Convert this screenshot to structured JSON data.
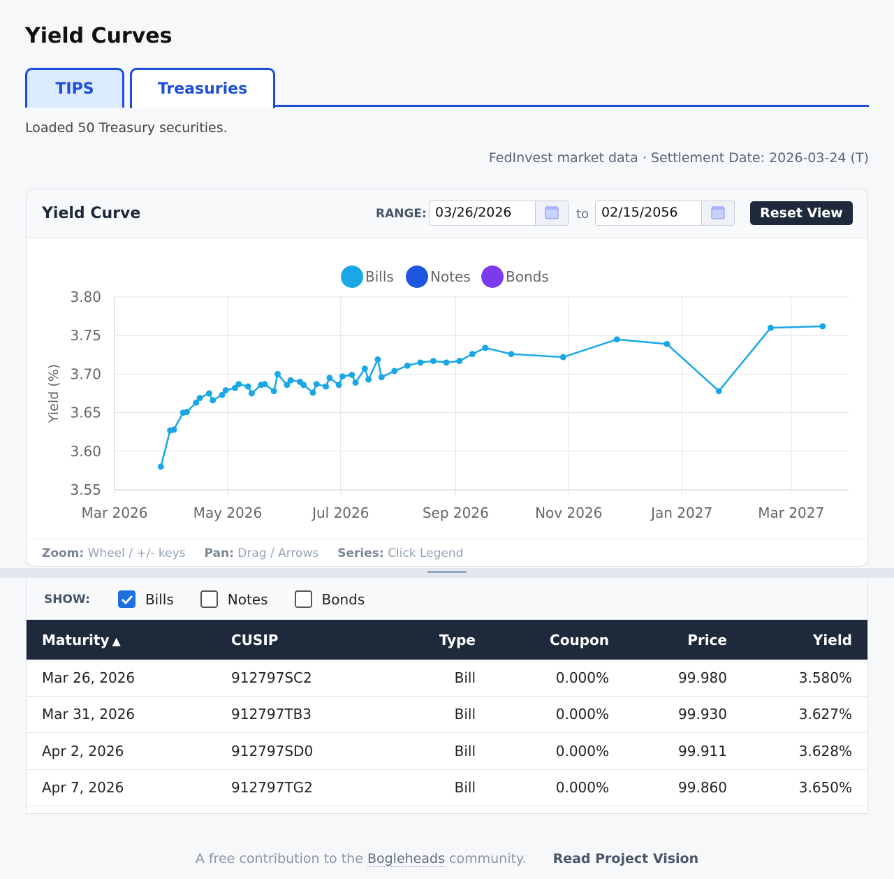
{
  "header": {
    "title": "Yield Curves"
  },
  "tabs": [
    "TIPS",
    "Treasuries"
  ],
  "status": "Loaded 50 Treasury securities.",
  "meta": "FedInvest market data · Settlement Date: 2026-03-24 (T)",
  "panel": {
    "title": "Yield Curve",
    "range_label": "RANGE:",
    "from": "03/26/2026",
    "to_label": "to",
    "to": "02/15/2056",
    "reset": "Reset View"
  },
  "chart_data": {
    "type": "line",
    "y_label": "Yield (%)",
    "grid": true,
    "xlim": [
      "2026-03-01",
      "2027-04-01"
    ],
    "xticks": [
      {
        "value": "2026-03-01",
        "label": "Mar 2026"
      },
      {
        "value": "2026-05-01",
        "label": "May 2026"
      },
      {
        "value": "2026-07-01",
        "label": "Jul 2026"
      },
      {
        "value": "2026-09-01",
        "label": "Sep 2026"
      },
      {
        "value": "2026-11-01",
        "label": "Nov 2026"
      },
      {
        "value": "2027-01-01",
        "label": "Jan 2027"
      },
      {
        "value": "2027-03-01",
        "label": "Mar 2027"
      }
    ],
    "ylim": [
      3.55,
      3.8
    ],
    "yticks": [
      3.55,
      {
        "value": 3.6,
        "label": "3.60"
      },
      3.65,
      {
        "value": 3.7,
        "label": "3.70"
      },
      3.75,
      {
        "value": 3.8,
        "label": "3.80"
      }
    ],
    "series": [
      {
        "name": "Bills",
        "color": "#19a7e6",
        "x": [
          "2026-03-26",
          "2026-03-31",
          "2026-04-02",
          "2026-04-07",
          "2026-04-09",
          "2026-04-14",
          "2026-04-16",
          "2026-04-21",
          "2026-04-23",
          "2026-04-28",
          "2026-04-30",
          "2026-05-05",
          "2026-05-07",
          "2026-05-12",
          "2026-05-14",
          "2026-05-19",
          "2026-05-21",
          "2026-05-26",
          "2026-05-28",
          "2026-06-02",
          "2026-06-04",
          "2026-06-09",
          "2026-06-11",
          "2026-06-16",
          "2026-06-18",
          "2026-06-23",
          "2026-06-25",
          "2026-06-30",
          "2026-07-02",
          "2026-07-07",
          "2026-07-09",
          "2026-07-14",
          "2026-07-16",
          "2026-07-21",
          "2026-07-23",
          "2026-07-30",
          "2026-08-06",
          "2026-08-13",
          "2026-08-20",
          "2026-08-27",
          "2026-09-03",
          "2026-09-10",
          "2026-09-17",
          "2026-10-01",
          "2026-10-29",
          "2026-11-27",
          "2026-12-24",
          "2027-01-21",
          "2027-02-18",
          "2027-03-18"
        ],
        "values": [
          3.58,
          3.627,
          3.628,
          3.65,
          3.651,
          3.663,
          3.669,
          3.675,
          3.666,
          3.673,
          3.679,
          3.682,
          3.687,
          3.684,
          3.675,
          3.686,
          3.687,
          3.678,
          3.7,
          3.686,
          3.692,
          3.69,
          3.686,
          3.676,
          3.687,
          3.684,
          3.695,
          3.686,
          3.697,
          3.699,
          3.689,
          3.707,
          3.693,
          3.719,
          3.696,
          3.704,
          3.711,
          3.715,
          3.717,
          3.715,
          3.717,
          3.726,
          3.734,
          3.726,
          3.722,
          3.745,
          3.739,
          3.678,
          3.76,
          3.762
        ]
      },
      {
        "name": "Notes",
        "color": "#1f56e0",
        "x": [],
        "values": []
      },
      {
        "name": "Bonds",
        "color": "#7c3aed",
        "x": [],
        "values": []
      }
    ]
  },
  "hints": [
    {
      "label": "Zoom:",
      "text": "Wheel / +/- keys"
    },
    {
      "label": "Pan:",
      "text": "Drag / Arrows"
    },
    {
      "label": "Series:",
      "text": "Click Legend"
    }
  ],
  "show": {
    "label": "SHOW:",
    "options": [
      {
        "name": "Bills",
        "checked": true
      },
      {
        "name": "Notes",
        "checked": false
      },
      {
        "name": "Bonds",
        "checked": false
      }
    ]
  },
  "table": {
    "headers": [
      "Maturity",
      "CUSIP",
      "Type",
      "Coupon",
      "Price",
      "Yield"
    ],
    "sort_indicator": "▲",
    "rows": [
      [
        "Mar 26, 2026",
        "912797SC2",
        "Bill",
        "0.000%",
        "99.980",
        "3.580%"
      ],
      [
        "Mar 31, 2026",
        "912797TB3",
        "Bill",
        "0.000%",
        "99.930",
        "3.627%"
      ],
      [
        "Apr 2, 2026",
        "912797SD0",
        "Bill",
        "0.000%",
        "99.911",
        "3.628%"
      ],
      [
        "Apr 7, 2026",
        "912797TG2",
        "Bill",
        "0.000%",
        "99.860",
        "3.650%"
      ]
    ]
  },
  "footer": {
    "text": "A free contribution to the",
    "link": "Bogleheads",
    "text2": "community.",
    "vision": "Read Project Vision"
  }
}
